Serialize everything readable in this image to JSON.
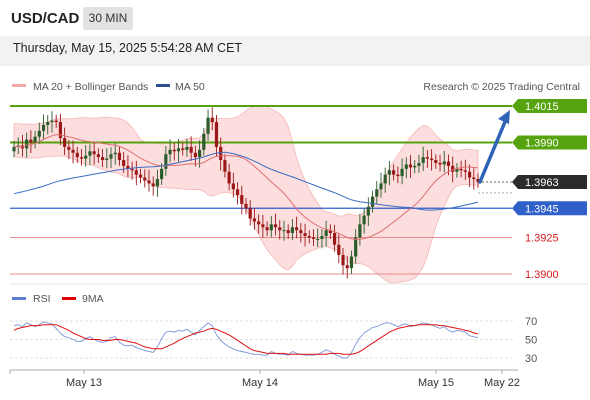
{
  "header": {
    "pair": "USD/CAD",
    "timeframe": "30 MIN"
  },
  "datetime": "Thursday, May 15, 2025 5:54:28 AM CET",
  "legend": {
    "bollinger": "MA 20 + Bollinger Bands",
    "ma50": "MA 50",
    "credit": "Research © 2025 Trading Central"
  },
  "rsi_legend": {
    "rsi": "RSI",
    "ma9": "9MA"
  },
  "colors": {
    "up": "#2a5d2a",
    "down": "#9a1818",
    "ma20": "#e07070",
    "ma50": "#3a6bc4",
    "green": "#57a30f",
    "red": "#d9534f",
    "blue": "#2f5fc8"
  },
  "chart_data": {
    "type": "candlestick",
    "ylim": [
      1.3895,
      1.4025
    ],
    "price_levels": [
      {
        "value": 1.4015,
        "label": "1.4015",
        "kind": "resistance"
      },
      {
        "value": 1.399,
        "label": "1.3990",
        "kind": "resistance"
      },
      {
        "value": 1.3963,
        "label": "1.3963",
        "kind": "current"
      },
      {
        "value": 1.3945,
        "label": "1.3945",
        "kind": "pivot"
      },
      {
        "value": 1.3925,
        "label": "1.3925",
        "kind": "support"
      },
      {
        "value": 1.39,
        "label": "1.3900",
        "kind": "support"
      }
    ],
    "forecast_target": 1.4015,
    "close": [
      1.3987,
      1.3988,
      1.3986,
      1.3992,
      1.399,
      1.3994,
      1.3998,
      1.4002,
      1.4004,
      1.4005,
      1.4004,
      1.3993,
      1.3987,
      1.3985,
      1.3983,
      1.398,
      1.3979,
      1.3981,
      1.3984,
      1.3982,
      1.398,
      1.3978,
      1.3979,
      1.3982,
      1.3983,
      1.3978,
      1.3974,
      1.3972,
      1.3971,
      1.3968,
      1.3966,
      1.3964,
      1.3962,
      1.396,
      1.3965,
      1.3972,
      1.3982,
      1.3985,
      1.3984,
      1.3986,
      1.3985,
      1.3987,
      1.3983,
      1.398,
      1.3985,
      1.3996,
      1.4007,
      1.4004,
      1.3987,
      1.3978,
      1.397,
      1.3962,
      1.3958,
      1.3954,
      1.3948,
      1.3945,
      1.3938,
      1.3936,
      1.3934,
      1.3932,
      1.393,
      1.3934,
      1.3932,
      1.393,
      1.393,
      1.3928,
      1.3932,
      1.393,
      1.3928,
      1.3926,
      1.3925,
      1.3924,
      1.3924,
      1.3926,
      1.393,
      1.3928,
      1.392,
      1.3913,
      1.3906,
      1.3904,
      1.3912,
      1.3925,
      1.3934,
      1.394,
      1.3946,
      1.3953,
      1.3958,
      1.3962,
      1.3968,
      1.3971,
      1.3968,
      1.3967,
      1.3972,
      1.3975,
      1.3973,
      1.3974,
      1.3976,
      1.398,
      1.3979,
      1.3978,
      1.3976,
      1.3975,
      1.3977,
      1.3974,
      1.397,
      1.3972,
      1.3971,
      1.397,
      1.3966,
      1.3965,
      1.3963
    ],
    "bb_upper_start": 1.4003,
    "bb_lower_start": 1.398,
    "ma50_start": 1.3955,
    "rsi": {
      "levels": [
        70,
        50,
        30
      ],
      "values": [
        65,
        66,
        64,
        68,
        66,
        64,
        66,
        69,
        68,
        67,
        62,
        57,
        53,
        52,
        50,
        48,
        48,
        51,
        53,
        50,
        48,
        47,
        48,
        52,
        53,
        47,
        44,
        43,
        44,
        41,
        40,
        38,
        37,
        36,
        42,
        51,
        58,
        59,
        58,
        60,
        59,
        61,
        58,
        55,
        60,
        64,
        68,
        65,
        55,
        49,
        45,
        42,
        40,
        38,
        37,
        36,
        35,
        34,
        34,
        33,
        33,
        37,
        35,
        34,
        34,
        33,
        37,
        35,
        34,
        33,
        33,
        33,
        34,
        36,
        39,
        37,
        34,
        32,
        30,
        30,
        36,
        45,
        52,
        57,
        60,
        63,
        64,
        66,
        68,
        68,
        66,
        64,
        66,
        67,
        64,
        65,
        66,
        68,
        67,
        66,
        64,
        62,
        64,
        60,
        58,
        60,
        59,
        58,
        54,
        53,
        52
      ],
      "ma9_values": [
        60,
        62,
        63,
        64,
        65,
        65,
        65,
        66,
        66,
        66,
        66,
        64,
        62,
        60,
        57,
        55,
        53,
        51,
        50,
        50,
        50,
        49,
        49,
        49,
        50,
        50,
        49,
        48,
        47,
        46,
        44,
        42,
        41,
        40,
        40,
        40,
        42,
        44,
        46,
        49,
        51,
        53,
        55,
        57,
        58,
        59,
        61,
        62,
        61,
        59,
        57,
        55,
        52,
        49,
        46,
        43,
        40,
        38,
        37,
        36,
        35,
        35,
        35,
        35,
        35,
        34,
        34,
        34,
        34,
        34,
        34,
        34,
        34,
        34,
        34,
        35,
        35,
        35,
        34,
        34,
        34,
        35,
        37,
        40,
        43,
        46,
        49,
        52,
        55,
        58,
        60,
        62,
        63,
        64,
        65,
        65,
        66,
        66,
        66,
        66,
        66,
        65,
        65,
        64,
        63,
        62,
        61,
        60,
        59,
        57,
        56
      ]
    },
    "x_ticks": [
      "May 13",
      "May 14",
      "May 15",
      "May 22"
    ]
  }
}
